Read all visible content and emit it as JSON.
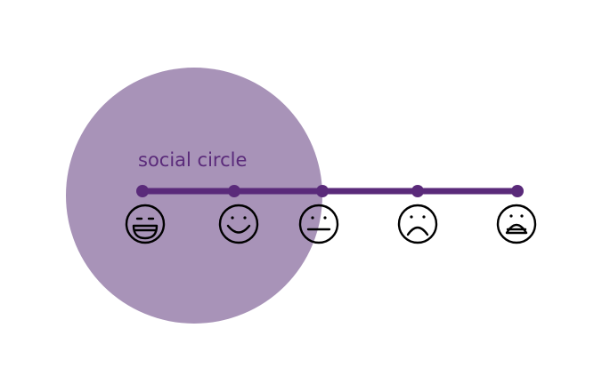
{
  "diagram": {
    "circle_label": "social circle",
    "colors": {
      "circle_fill": "#a893b8",
      "scale_line": "#5a2a7a",
      "face_stroke": "#000000",
      "label_text": "#5a2a7a",
      "background": "#ffffff"
    },
    "scale": {
      "points": [
        {
          "face": "big-grin-face-icon"
        },
        {
          "face": "smile-face-icon"
        },
        {
          "face": "neutral-face-icon"
        },
        {
          "face": "frown-face-icon"
        },
        {
          "face": "distressed-face-icon"
        }
      ]
    }
  }
}
